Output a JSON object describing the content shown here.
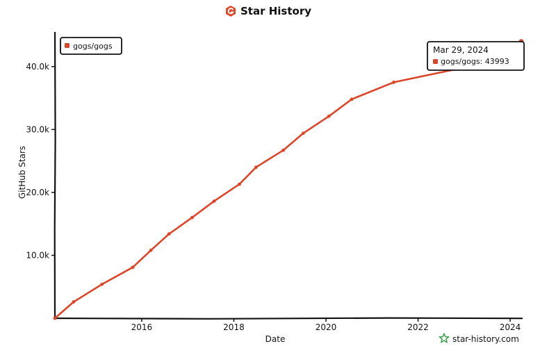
{
  "chart_data": {
    "type": "line",
    "title": "Star History",
    "xlabel": "Date",
    "ylabel": "GitHub Stars",
    "x_tick_labels": [
      "2016",
      "2018",
      "2020",
      "2022",
      "2024"
    ],
    "x_ticks": [
      2016,
      2018,
      2020,
      2022,
      2024
    ],
    "y_tick_labels": [
      "10.0k",
      "20.0k",
      "30.0k",
      "40.0k"
    ],
    "y_ticks": [
      10000,
      20000,
      30000,
      40000
    ],
    "xlim": [
      "2014-02-12",
      "2024-03-29"
    ],
    "ylim": [
      0,
      45500
    ],
    "legend": {
      "position": "top-left",
      "entries": [
        "gogs/gogs"
      ]
    },
    "grid": false,
    "series": [
      {
        "name": "gogs/gogs",
        "color": "#dd4528",
        "points": [
          {
            "date": "2014-02-12",
            "value": 0
          },
          {
            "date": "2014-07-10",
            "value": 2600
          },
          {
            "date": "2015-02-20",
            "value": 5400
          },
          {
            "date": "2015-10-22",
            "value": 8100
          },
          {
            "date": "2016-03-14",
            "value": 10800
          },
          {
            "date": "2016-08-05",
            "value": 13400
          },
          {
            "date": "2017-02-04",
            "value": 16000
          },
          {
            "date": "2017-07-28",
            "value": 18600
          },
          {
            "date": "2018-02-14",
            "value": 21300
          },
          {
            "date": "2018-06-26",
            "value": 24000
          },
          {
            "date": "2019-01-28",
            "value": 26700
          },
          {
            "date": "2019-07-05",
            "value": 29400
          },
          {
            "date": "2020-01-24",
            "value": 32100
          },
          {
            "date": "2020-07-23",
            "value": 34800
          },
          {
            "date": "2021-06-22",
            "value": 37500
          },
          {
            "date": "2023-03-24",
            "value": 40200
          },
          {
            "date": "2024-03-29",
            "value": 43993
          }
        ]
      }
    ],
    "tooltip": {
      "date": "Mar 29, 2024",
      "text": "gogs/gogs: 43993"
    }
  },
  "watermark": {
    "text": "star-history.com"
  }
}
